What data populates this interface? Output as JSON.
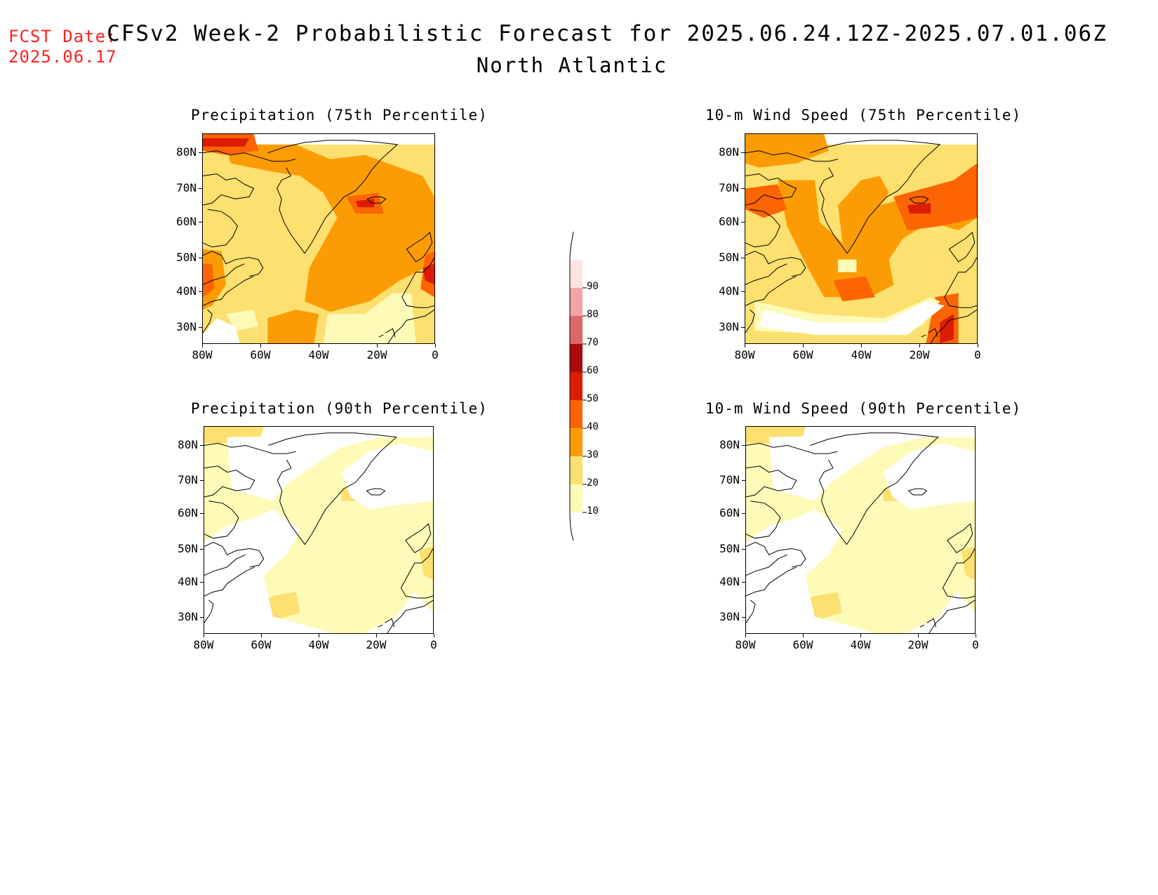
{
  "header": {
    "fcst_label": "FCST Date:",
    "fcst_date": "2025.06.17",
    "title": "CFSv2 Week-2 Probabilistic Forecast for 2025.06.24.12Z-2025.07.01.06Z",
    "subtitle": "North Atlantic"
  },
  "panels": [
    {
      "title": "Precipitation (75th Percentile)",
      "intensity": "high"
    },
    {
      "title": "10-m Wind Speed (75th Percentile)",
      "intensity": "high"
    },
    {
      "title": "Precipitation (90th Percentile)",
      "intensity": "low"
    },
    {
      "title": "10-m Wind Speed (90th Percentile)",
      "intensity": "low"
    }
  ],
  "axes": {
    "lat_labels": [
      "80N",
      "70N",
      "60N",
      "50N",
      "40N",
      "30N"
    ],
    "lon_labels": [
      "80W",
      "60W",
      "40W",
      "20W",
      "0"
    ]
  },
  "colorbar": {
    "labels": [
      "90",
      "80",
      "70",
      "60",
      "50",
      "40",
      "30",
      "20",
      "10"
    ],
    "colors": [
      "#fde4e4",
      "#f2a5a5",
      "#de6868",
      "#a80c0c",
      "#dc1c04",
      "#fc6404",
      "#fc9c04",
      "#fce070",
      "#fefab8"
    ]
  }
}
